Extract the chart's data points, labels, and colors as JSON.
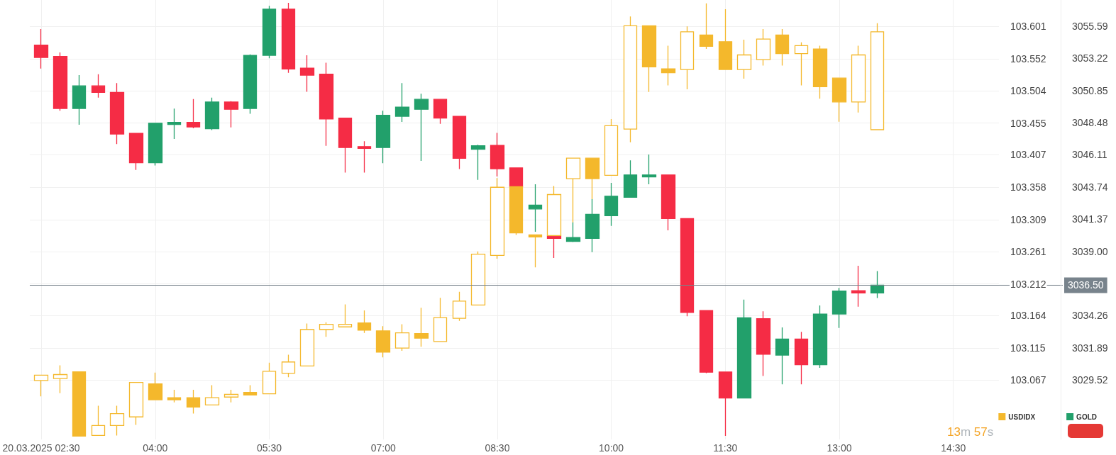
{
  "chart_data": {
    "type": "candlestick",
    "x": [
      2.5,
      2.75,
      3,
      3.25,
      3.5,
      3.75,
      4,
      4.25,
      4.5,
      4.75,
      5,
      5.25,
      5.5,
      5.75,
      6,
      6.25,
      6.5,
      6.75,
      7,
      7.25,
      7.5,
      7.75,
      8,
      8.25,
      8.5,
      8.75,
      9,
      9.25,
      9.5,
      9.75,
      10,
      10.25,
      10.5,
      10.75,
      11,
      11.25,
      11.5,
      11.75,
      12,
      12.25,
      12.5,
      12.75,
      13,
      13.25,
      13.5
    ],
    "series": [
      {
        "name": "GOLD",
        "axis": "y2",
        "color": "#22a06b",
        "colors": [
          "#f52c45",
          "#f52c45",
          "#22a06b",
          "#f52c45",
          "#f52c45",
          "#f52c45",
          "#22a06b",
          "#22a06b",
          "#f52c45",
          "#22a06b",
          "#f52c45",
          "#22a06b",
          "#22a06b",
          "#f52c45",
          "#f52c45",
          "#f52c45",
          "#f52c45",
          "#f52c45",
          "#22a06b",
          "#22a06b",
          "#22a06b",
          "#f52c45",
          "#f52c45",
          "#22a06b",
          "#f52c45",
          "#f52c45",
          "#22a06b",
          "#f52c45",
          "#22a06b",
          "#22a06b",
          "#22a06b",
          "#22a06b",
          "#22a06b",
          "#f52c45",
          "#f52c45",
          "#f52c45",
          "#f52c45",
          "#22a06b",
          "#f52c45",
          "#22a06b",
          "#f52c45",
          "#22a06b",
          "#22a06b",
          "#f52c45",
          "#22a06b"
        ],
        "ohlc": [
          [
            3054.19,
            3055.38,
            3052.47,
            3053.29
          ],
          [
            3053.36,
            3053.66,
            3049.36,
            3049.53
          ],
          [
            3049.53,
            3051.98,
            3048.33,
            3051.19
          ],
          [
            3051.19,
            3052.05,
            3050.33,
            3050.71
          ],
          [
            3050.71,
            3051.4,
            3046.91,
            3047.64
          ],
          [
            3047.7,
            3047.7,
            3045.0,
            3045.53
          ],
          [
            3045.53,
            3048.44,
            3045.32,
            3048.44
          ],
          [
            3048.35,
            3049.51,
            3047.28,
            3048.5
          ],
          [
            3048.5,
            3050.22,
            3048.07,
            3048.16
          ],
          [
            3048.03,
            3050.33,
            3047.94,
            3050.0
          ],
          [
            3050.0,
            3050.07,
            3048.13,
            3049.47
          ],
          [
            3049.53,
            3053.51,
            3049.14,
            3053.44
          ],
          [
            3053.44,
            3057.09,
            3053.23,
            3056.84
          ],
          [
            3056.84,
            3057.31,
            3052.15,
            3052.43
          ],
          [
            3052.5,
            3053.44,
            3050.76,
            3051.98
          ],
          [
            3052.05,
            3052.9,
            3046.78,
            3048.76
          ],
          [
            3048.82,
            3048.82,
            3044.8,
            3046.65
          ],
          [
            3046.72,
            3047.12,
            3044.8,
            3046.59
          ],
          [
            3046.65,
            3049.36,
            3045.49,
            3049.02
          ],
          [
            3048.95,
            3051.4,
            3048.54,
            3049.62
          ],
          [
            3049.47,
            3050.61,
            3045.66,
            3050.2
          ],
          [
            3050.2,
            3050.2,
            3048.39,
            3048.82
          ],
          [
            3048.95,
            3048.95,
            3045.06,
            3045.86
          ],
          [
            3046.52,
            3046.85,
            3044.27,
            3046.78
          ],
          [
            3046.8,
            3047.73,
            3044.52,
            3045.08
          ],
          [
            3045.15,
            3045.15,
            3043.77,
            3043.77
          ],
          [
            3042.12,
            3043.94,
            3040.44,
            3042.4
          ],
          [
            3040.12,
            3040.12,
            3038.51,
            3039.95
          ],
          [
            3039.73,
            3041.15,
            3039.69,
            3040.01
          ],
          [
            3039.95,
            3042.85,
            3038.94,
            3041.73
          ],
          [
            3041.62,
            3044.05,
            3040.87,
            3043.06
          ],
          [
            3042.98,
            3045.71,
            3042.98,
            3044.63
          ],
          [
            3044.48,
            3046.14,
            3043.94,
            3044.63
          ],
          [
            3044.63,
            3044.63,
            3040.55,
            3041.41
          ],
          [
            3041.41,
            3041.41,
            3034.21,
            3034.49
          ],
          [
            3034.64,
            3034.64,
            3030.02,
            3030.09
          ],
          [
            3030.11,
            3030.11,
            3025.4,
            3028.19
          ],
          [
            3028.19,
            3035.44,
            3028.15,
            3034.1
          ],
          [
            3034.04,
            3034.58,
            3029.81,
            3031.42
          ],
          [
            3031.35,
            3033.39,
            3029.2,
            3032.54
          ],
          [
            3032.54,
            3033.07,
            3029.2,
            3030.64
          ],
          [
            3030.64,
            3035.01,
            3030.41,
            3034.38
          ],
          [
            3034.38,
            3036.3,
            3033.35,
            3036.08
          ],
          [
            3036.1,
            3037.93,
            3034.92,
            3035.93
          ],
          [
            3035.93,
            3037.54,
            3035.56,
            3036.5
          ]
        ]
      },
      {
        "name": "USDIDX",
        "color": "#f4b82c",
        "ohlc": [
          [
            103.066,
            103.074,
            103.042,
            103.074
          ],
          [
            103.069,
            103.089,
            103.047,
            103.075
          ],
          [
            103.079,
            103.079,
            102.982,
            102.982
          ],
          [
            102.983,
            103.028,
            102.983,
            102.998
          ],
          [
            102.998,
            103.028,
            102.983,
            103.016
          ],
          [
            103.011,
            103.063,
            102.999,
            103.063
          ],
          [
            103.061,
            103.078,
            103.037,
            103.037
          ],
          [
            103.04,
            103.052,
            103.033,
            103.037
          ],
          [
            103.04,
            103.052,
            103.016,
            103.026
          ],
          [
            103.029,
            103.059,
            103.029,
            103.04
          ],
          [
            103.041,
            103.052,
            103.033,
            103.045
          ],
          [
            103.048,
            103.059,
            103.044,
            103.044
          ],
          [
            103.046,
            103.093,
            103.046,
            103.08
          ],
          [
            103.077,
            103.105,
            103.071,
            103.094
          ],
          [
            103.088,
            103.152,
            103.088,
            103.143
          ],
          [
            103.143,
            103.154,
            103.132,
            103.151
          ],
          [
            103.147,
            103.181,
            103.147,
            103.151
          ],
          [
            103.153,
            103.172,
            103.138,
            103.142
          ],
          [
            103.141,
            103.148,
            103.101,
            103.109
          ],
          [
            103.115,
            103.151,
            103.111,
            103.138
          ],
          [
            103.137,
            103.176,
            103.117,
            103.13
          ],
          [
            103.125,
            103.191,
            103.125,
            103.161
          ],
          [
            103.16,
            103.2,
            103.156,
            103.186
          ],
          [
            103.18,
            103.261,
            103.18,
            103.257
          ],
          [
            103.255,
            103.372,
            103.25,
            103.358
          ],
          [
            103.359,
            103.359,
            103.286,
            103.289
          ],
          [
            103.286,
            103.286,
            103.237,
            103.283
          ],
          [
            103.285,
            103.36,
            103.285,
            103.347
          ],
          [
            103.371,
            103.402,
            103.305,
            103.402
          ],
          [
            103.402,
            103.402,
            103.34,
            103.371
          ],
          [
            103.376,
            103.461,
            103.376,
            103.451
          ],
          [
            103.446,
            103.616,
            103.426,
            103.602
          ],
          [
            103.602,
            103.602,
            103.502,
            103.54
          ],
          [
            103.537,
            103.572,
            103.512,
            103.531
          ],
          [
            103.536,
            103.601,
            103.506,
            103.593
          ],
          [
            103.588,
            103.636,
            103.567,
            103.571
          ],
          [
            103.578,
            103.627,
            103.536,
            103.536
          ],
          [
            103.536,
            103.581,
            103.522,
            103.558
          ],
          [
            103.551,
            103.597,
            103.542,
            103.582
          ],
          [
            103.588,
            103.597,
            103.542,
            103.56
          ],
          [
            103.56,
            103.577,
            103.512,
            103.572
          ],
          [
            103.567,
            103.572,
            103.492,
            103.51
          ],
          [
            103.523,
            103.523,
            103.457,
            103.487
          ],
          [
            103.487,
            103.572,
            103.471,
            103.558
          ],
          [
            103.445,
            103.606,
            103.445,
            103.593
          ]
        ]
      }
    ],
    "xlim": [
      2.35,
      15.1
    ],
    "xticks": [
      {
        "value": 2.5,
        "label": "20.03.2025 02:30"
      },
      {
        "value": 4,
        "label": "04:00"
      },
      {
        "value": 5.5,
        "label": "05:30"
      },
      {
        "value": 7,
        "label": "07:00"
      },
      {
        "value": 8.5,
        "label": "08:30"
      },
      {
        "value": 10,
        "label": "10:00"
      },
      {
        "value": 11.5,
        "label": "11:30"
      },
      {
        "value": 13,
        "label": "13:00"
      },
      {
        "value": 14.5,
        "label": "14:30"
      }
    ],
    "ylim": [
      102.977,
      103.641
    ],
    "yticks": [
      103.601,
      103.552,
      103.504,
      103.455,
      103.407,
      103.358,
      103.309,
      103.261,
      103.212,
      103.164,
      103.115,
      103.067
    ],
    "y2lim": [
      3025.14,
      3057.52
    ],
    "y2ticks": [
      3055.59,
      3053.22,
      3050.85,
      3048.48,
      3046.11,
      3043.74,
      3041.37,
      {
        "value": 3039,
        "label": "3039.00"
      },
      3034.26,
      3031.89,
      3029.52
    ],
    "ref_lines": [
      {
        "axis": "y2",
        "value": 3036.5,
        "label": "3036.50",
        "color": "#78838c"
      }
    ],
    "annotations": [
      "13m 57s"
    ],
    "grid": true,
    "legend": "bottom right"
  }
}
